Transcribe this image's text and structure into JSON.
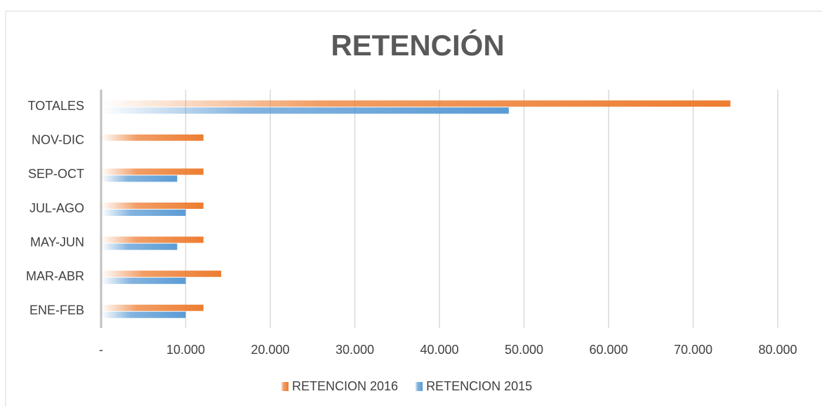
{
  "chart_data": {
    "type": "barh",
    "title": "RETENCIÓN",
    "categories": [
      "ENE-FEB",
      "MAR-ABR",
      "MAY-JUN",
      "JUL-AGO",
      "SEP-OCT",
      "NOV-DIC",
      "TOTALES"
    ],
    "series": [
      {
        "name": "RETENCION 2016",
        "color": "#ed7d31",
        "values": [
          12100,
          14200,
          12100,
          12100,
          12100,
          12100,
          74400
        ]
      },
      {
        "name": "RETENCION 2015",
        "color": "#5b9bd5",
        "values": [
          10000,
          10000,
          9000,
          10000,
          9000,
          null,
          48200
        ]
      }
    ],
    "xlim": [
      0,
      80000
    ],
    "xticks": [
      {
        "value": 0,
        "label": "-"
      },
      {
        "value": 10000,
        "label": "10.000"
      },
      {
        "value": 20000,
        "label": "20.000"
      },
      {
        "value": 30000,
        "label": "30.000"
      },
      {
        "value": 40000,
        "label": "40.000"
      },
      {
        "value": 50000,
        "label": "50.000"
      },
      {
        "value": 60000,
        "label": "60.000"
      },
      {
        "value": 70000,
        "label": "70.000"
      },
      {
        "value": 80000,
        "label": "80.000"
      }
    ],
    "grid": true,
    "legend": "bottom"
  }
}
